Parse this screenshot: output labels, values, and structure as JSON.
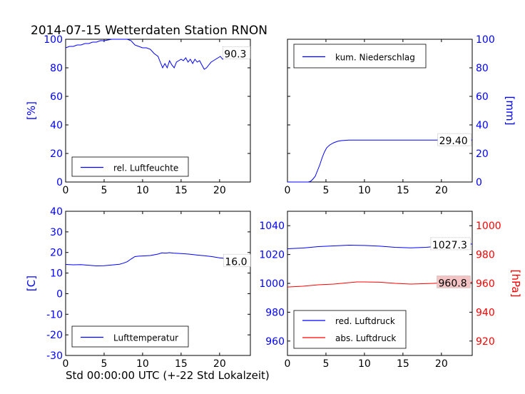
{
  "figure": {
    "title": "2014-07-15 Wetterdaten Station RNON",
    "xlabel": "Std 00:00:00 UTC (+-22 Std Lokalzeit)"
  },
  "colors": {
    "blue": "#0000ff",
    "red": "#ff0000",
    "red_box": "#f4c4c4",
    "axes": "#000000"
  },
  "chart_data": [
    {
      "type": "line",
      "panel": "humidity",
      "xlim": [
        0,
        24
      ],
      "ylim": [
        0,
        100
      ],
      "x_ticks": [
        0,
        5,
        10,
        15,
        20
      ],
      "y_ticks": [
        0,
        20,
        40,
        60,
        80,
        100
      ],
      "ylabel": "[%]",
      "ylabel_side": "left",
      "legend_position": "lower-left",
      "series": [
        {
          "name": "rel. Luftfeuchte",
          "color": "#0000ff",
          "x": [
            0,
            0.5,
            1,
            1.5,
            2,
            2.5,
            3,
            3.5,
            4,
            4.5,
            5,
            6,
            7,
            8,
            8.5,
            9,
            9.5,
            10,
            10.5,
            11,
            11.5,
            12,
            12.3,
            12.6,
            12.9,
            13.2,
            13.5,
            13.8,
            14.1,
            14.4,
            14.7,
            15,
            15.3,
            15.6,
            15.9,
            16.2,
            16.5,
            16.8,
            17.1,
            17.4,
            17.7,
            18,
            18.3,
            18.6,
            18.9,
            19.2,
            19.5,
            19.8,
            20.1,
            20.4,
            20.7,
            21,
            21.3,
            21.6,
            21.9,
            22.2,
            22.5,
            22.8,
            23.1,
            23.4,
            23.7,
            24
          ],
          "values": [
            94,
            95,
            95,
            96,
            96,
            97,
            97,
            98,
            98,
            99,
            99,
            100,
            100,
            100,
            99,
            96,
            95,
            94,
            94,
            93,
            90,
            88,
            84,
            80,
            83,
            80,
            85,
            82,
            80,
            84,
            85,
            86,
            85,
            87,
            84,
            86,
            83,
            86,
            84,
            85,
            82,
            79,
            80,
            82,
            84,
            85,
            86,
            87,
            88,
            86,
            90,
            88,
            91,
            89,
            90,
            88,
            92,
            89,
            91,
            89,
            90,
            90
          ]
        }
      ],
      "annotation": {
        "text": "90.3",
        "x": 20.6,
        "y": 90.3
      }
    },
    {
      "type": "line",
      "panel": "precipitation",
      "xlim": [
        0,
        24
      ],
      "ylim": [
        0,
        100
      ],
      "x_ticks": [
        0,
        5,
        10,
        15,
        20
      ],
      "y_ticks": [
        0,
        20,
        40,
        60,
        80,
        100
      ],
      "ylabel": "[mm]",
      "ylabel_side": "right",
      "legend_position": "upper-left",
      "series": [
        {
          "name": "kum. Niederschlag",
          "color": "#0000ff",
          "x": [
            0,
            2.7,
            3.0,
            3.3,
            3.6,
            3.9,
            4.2,
            4.5,
            4.8,
            5.1,
            5.5,
            6.0,
            6.5,
            7.0,
            7.5,
            8.0,
            10,
            15,
            20,
            24
          ],
          "values": [
            0,
            0,
            0.5,
            2,
            4,
            8,
            12,
            17,
            21,
            24,
            26,
            27.5,
            28.5,
            29,
            29.2,
            29.4,
            29.4,
            29.4,
            29.4,
            29.4
          ]
        }
      ],
      "annotation": {
        "text": "29.40",
        "x": 19.7,
        "y": 29.4
      }
    },
    {
      "type": "line",
      "panel": "temperature",
      "xlim": [
        0,
        24
      ],
      "ylim": [
        -30,
        40
      ],
      "x_ticks": [
        0,
        5,
        10,
        15,
        20
      ],
      "y_ticks": [
        -30,
        -20,
        -10,
        0,
        10,
        20,
        30,
        40
      ],
      "ylabel": "[C]",
      "ylabel_side": "left",
      "legend_position": "lower-left",
      "series": [
        {
          "name": "Lufttemperatur",
          "color": "#0000ff",
          "x": [
            0,
            1,
            2,
            3,
            4,
            5,
            6,
            7,
            7.5,
            8,
            8.5,
            9,
            9.5,
            10,
            11,
            12,
            12.5,
            13,
            13.5,
            14,
            15,
            16,
            17,
            18,
            19,
            20,
            21,
            22,
            23,
            24
          ],
          "values": [
            14.2,
            14.0,
            14.1,
            13.8,
            13.5,
            13.6,
            13.9,
            14.3,
            14.8,
            15.5,
            16.8,
            18.0,
            18.2,
            18.3,
            18.5,
            19.2,
            19.8,
            19.7,
            19.9,
            19.7,
            19.5,
            19.2,
            18.8,
            18.4,
            18.0,
            17.4,
            17.0,
            16.8,
            16.5,
            16.0
          ]
        }
      ],
      "annotation": {
        "text": "16.0",
        "x": 20.7,
        "y": 16.0
      }
    },
    {
      "type": "line",
      "panel": "pressure",
      "xlim": [
        0,
        24
      ],
      "ylim": [
        950,
        1050
      ],
      "ylim_right": [
        910,
        1010
      ],
      "x_ticks": [
        0,
        5,
        10,
        15,
        20
      ],
      "y_ticks": [
        960,
        980,
        1000,
        1020,
        1040
      ],
      "y_ticks_right": [
        920,
        940,
        960,
        980,
        1000
      ],
      "ylabel_right": "[hPa]",
      "legend_position": "lower-left",
      "series": [
        {
          "name": "red. Luftdruck",
          "axis": "left",
          "color": "#0000ff",
          "x": [
            0,
            2,
            4,
            6,
            8,
            10,
            12,
            14,
            16,
            18,
            19,
            20,
            22,
            24
          ],
          "values": [
            1024,
            1024.5,
            1025.5,
            1026,
            1026.5,
            1026.3,
            1025.8,
            1025,
            1024.6,
            1025,
            1025.5,
            1026.5,
            1027,
            1027.3
          ]
        },
        {
          "name": "abs. Luftdruck",
          "axis": "right",
          "color": "#ff0000",
          "x": [
            0,
            2,
            4,
            6,
            8,
            9,
            10,
            12,
            14,
            16,
            18,
            19,
            20,
            22,
            24
          ],
          "values": [
            957.5,
            958,
            959,
            959.5,
            960.5,
            961,
            961,
            960.8,
            960,
            959.5,
            959.8,
            960,
            960.3,
            960.6,
            960.8
          ]
        }
      ],
      "annotations": [
        {
          "text": "1027.3",
          "x": 18.8,
          "y": 1027.3,
          "axis": "left"
        },
        {
          "text": "960.8",
          "x": 19.6,
          "y": 960.8,
          "axis": "right"
        }
      ]
    }
  ]
}
